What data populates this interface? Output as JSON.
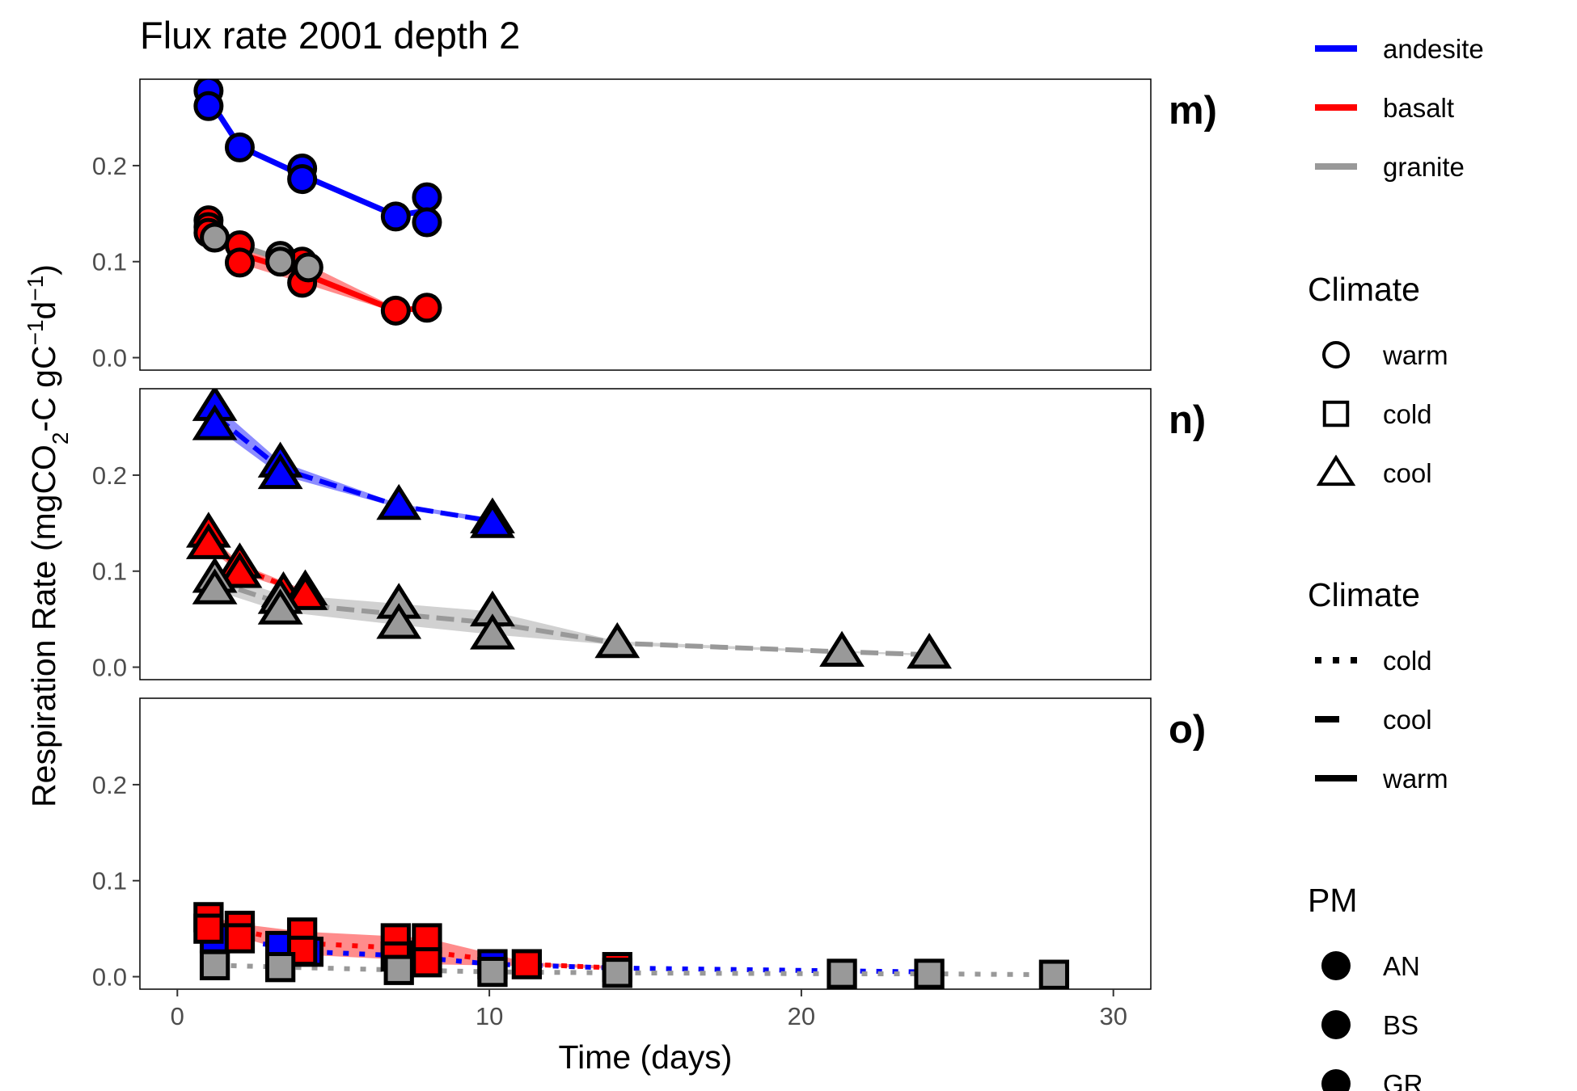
{
  "title": "Flux rate 2001 depth  2",
  "colors": {
    "andesite": "#0000ff",
    "basalt": "#ff0000",
    "granite": "#999999"
  },
  "legend": {
    "pm_color": {
      "items": [
        {
          "label": "andesite",
          "color": "#0000ff"
        },
        {
          "label": "basalt",
          "color": "#ff0000"
        },
        {
          "label": "granite",
          "color": "#999999"
        }
      ]
    },
    "climate_shape": {
      "title": "Climate",
      "items": [
        {
          "label": "warm",
          "shape": "circle"
        },
        {
          "label": "cold",
          "shape": "square"
        },
        {
          "label": "cool",
          "shape": "triangle"
        }
      ]
    },
    "climate_line": {
      "title": "Climate",
      "items": [
        {
          "label": "cold",
          "linetype": "dotted"
        },
        {
          "label": "cool",
          "linetype": "dashed"
        },
        {
          "label": "warm",
          "linetype": "solid"
        }
      ]
    },
    "pm": {
      "title": "PM",
      "items": [
        {
          "label": "AN"
        },
        {
          "label": "BS"
        },
        {
          "label": "GR"
        }
      ]
    }
  },
  "chart_data": {
    "type": "line",
    "title": "Flux rate 2001 depth  2",
    "xlabel": "Time (days)",
    "ylabel": "Respiration Rate (mgCO2-C gC-1d-1)",
    "xlim": [
      -1.2,
      31.2
    ],
    "ylim": [
      -0.013,
      0.29
    ],
    "x_ticks": [
      0,
      10,
      20,
      30
    ],
    "y_ticks": [
      0.0,
      0.1,
      0.2
    ],
    "grid": false,
    "legend_position": "right",
    "panels": [
      {
        "label": "m)",
        "climate": "warm",
        "shape": "circle",
        "linetype": "solid",
        "series": [
          {
            "name": "andesite",
            "ribbon": false,
            "x": [
              1,
              2,
              4,
              7,
              8
            ],
            "y": [
              0.27,
              0.22,
              0.19,
              0.148,
              0.153
            ],
            "points": [
              [
                1,
                0.278
              ],
              [
                1,
                0.262
              ],
              [
                2,
                0.219
              ],
              [
                4,
                0.197
              ],
              [
                4,
                0.186
              ],
              [
                7,
                0.147
              ],
              [
                8,
                0.167
              ],
              [
                8,
                0.141
              ]
            ]
          },
          {
            "name": "basalt",
            "ribbon": true,
            "x": [
              1,
              2,
              4,
              7,
              8
            ],
            "y": [
              0.134,
              0.108,
              0.088,
              0.049,
              0.052
            ],
            "lower": [
              0.128,
              0.098,
              0.078,
              0.047,
              0.05
            ],
            "upper": [
              0.142,
              0.117,
              0.1,
              0.052,
              0.054
            ],
            "points": [
              [
                1,
                0.143
              ],
              [
                1,
                0.136
              ],
              [
                1,
                0.13
              ],
              [
                2,
                0.117
              ],
              [
                2,
                0.099
              ],
              [
                4,
                0.1
              ],
              [
                4,
                0.078
              ],
              [
                7,
                0.049
              ],
              [
                8,
                0.052
              ]
            ]
          },
          {
            "name": "granite",
            "ribbon": false,
            "x": [
              1.2,
              3.3,
              4.2
            ],
            "y": [
              0.125,
              0.103,
              0.094
            ],
            "points": [
              [
                1.2,
                0.125
              ],
              [
                3.3,
                0.106
              ],
              [
                3.3,
                0.1
              ],
              [
                4.2,
                0.094
              ]
            ]
          }
        ]
      },
      {
        "label": "n)",
        "climate": "cool",
        "shape": "triangle",
        "linetype": "dashed",
        "series": [
          {
            "name": "andesite",
            "ribbon": true,
            "x": [
              1.2,
              3.3,
              7.1,
              10.1
            ],
            "y": [
              0.262,
              0.207,
              0.168,
              0.152
            ],
            "lower": [
              0.25,
              0.2,
              0.166,
              0.15
            ],
            "upper": [
              0.274,
              0.214,
              0.17,
              0.155
            ],
            "points": [
              [
                1.2,
                0.272
              ],
              [
                1.2,
                0.252
              ],
              [
                3.3,
                0.213
              ],
              [
                3.3,
                0.201
              ],
              [
                7.1,
                0.169
              ],
              [
                10.1,
                0.155
              ],
              [
                10.1,
                0.15
              ]
            ]
          },
          {
            "name": "basalt",
            "ribbon": true,
            "x": [
              1,
              2,
              4.1
            ],
            "y": [
              0.132,
              0.103,
              0.077
            ],
            "lower": [
              0.124,
              0.098,
              0.075
            ],
            "upper": [
              0.14,
              0.108,
              0.08
            ],
            "points": [
              [
                1,
                0.14
              ],
              [
                1,
                0.128
              ],
              [
                2,
                0.108
              ],
              [
                2,
                0.098
              ],
              [
                3.4,
                0.078
              ],
              [
                4.1,
                0.08
              ],
              [
                4.1,
                0.075
              ]
            ]
          },
          {
            "name": "granite",
            "ribbon": true,
            "x": [
              1.2,
              3.3,
              7.1,
              10.1,
              14.1,
              21.3,
              24.1
            ],
            "y": [
              0.089,
              0.067,
              0.055,
              0.046,
              0.025,
              0.016,
              0.013
            ],
            "lower": [
              0.08,
              0.058,
              0.044,
              0.034,
              0.023,
              0.015,
              0.012
            ],
            "upper": [
              0.098,
              0.076,
              0.066,
              0.058,
              0.027,
              0.017,
              0.014
            ],
            "points": [
              [
                1.2,
                0.093
              ],
              [
                1.2,
                0.081
              ],
              [
                3.3,
                0.071
              ],
              [
                3.3,
                0.06
              ],
              [
                7.1,
                0.066
              ],
              [
                7.1,
                0.045
              ],
              [
                10.1,
                0.058
              ],
              [
                10.1,
                0.034
              ],
              [
                14.1,
                0.025
              ],
              [
                21.3,
                0.016
              ],
              [
                24.1,
                0.014
              ]
            ]
          }
        ]
      },
      {
        "label": "o)",
        "climate": "cold",
        "shape": "square",
        "linetype": "dotted",
        "series": [
          {
            "name": "andesite",
            "ribbon": false,
            "x": [
              1.2,
              3.3,
              4.2,
              7.1,
              10.1,
              14.1,
              21.3,
              24.1
            ],
            "y": [
              0.04,
              0.032,
              0.026,
              0.022,
              0.013,
              0.009,
              0.006,
              0.005
            ],
            "points": [
              [
                1.2,
                0.04
              ],
              [
                3.3,
                0.032
              ],
              [
                4.2,
                0.026
              ],
              [
                7.1,
                0.022
              ],
              [
                10.1,
                0.013
              ]
            ]
          },
          {
            "name": "basalt",
            "ribbon": true,
            "x": [
              1,
              2,
              4,
              7,
              8,
              11.2,
              14.1
            ],
            "y": [
              0.055,
              0.048,
              0.035,
              0.03,
              0.026,
              0.013,
              0.009
            ],
            "lower": [
              0.047,
              0.041,
              0.023,
              0.018,
              0.013,
              0.011,
              0.008
            ],
            "upper": [
              0.063,
              0.055,
              0.047,
              0.042,
              0.04,
              0.015,
              0.011
            ],
            "points": [
              [
                1,
                0.062
              ],
              [
                1,
                0.05
              ],
              [
                2,
                0.053
              ],
              [
                2,
                0.04
              ],
              [
                4,
                0.046
              ],
              [
                4,
                0.027
              ],
              [
                7,
                0.04
              ],
              [
                7,
                0.021
              ],
              [
                8,
                0.04
              ],
              [
                8,
                0.015
              ],
              [
                11.2,
                0.013
              ],
              [
                14.1,
                0.01
              ]
            ]
          },
          {
            "name": "granite",
            "ribbon": false,
            "x": [
              1.2,
              3.3,
              7.1,
              10.1,
              14.1,
              21.3,
              24.1,
              28.1
            ],
            "y": [
              0.012,
              0.01,
              0.007,
              0.005,
              0.004,
              0.003,
              0.003,
              0.002
            ],
            "points": [
              [
                1.2,
                0.012
              ],
              [
                3.3,
                0.01
              ],
              [
                7.1,
                0.007
              ],
              [
                10.1,
                0.005
              ],
              [
                14.1,
                0.004
              ],
              [
                21.3,
                0.003
              ],
              [
                24.1,
                0.003
              ],
              [
                28.1,
                0.002
              ]
            ]
          }
        ]
      }
    ]
  }
}
